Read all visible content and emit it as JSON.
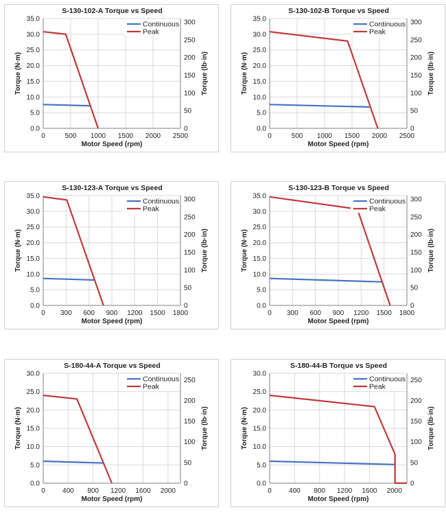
{
  "colors": {
    "continuous": "#4472c4",
    "peak": "#c0393b",
    "grid": "#d9d9d9",
    "axis": "#7f7f7f"
  },
  "chart_data": [
    {
      "type": "line",
      "title": "S-130-102-A Torque vs Speed",
      "xlabel": "Motor Speed (rpm)",
      "ylabel": "Torque (N·m)",
      "y2label": "Torque (lb·in)",
      "xlim": [
        0,
        2500
      ],
      "xticks": [
        "0",
        "500",
        "1000",
        "1500",
        "2000",
        "2500"
      ],
      "ylim": [
        0,
        35
      ],
      "yticks": [
        "0.0",
        "5.0",
        "10.0",
        "15.0",
        "20.0",
        "25.0",
        "30.0",
        "35.0"
      ],
      "y2lim": [
        0,
        309.8
      ],
      "y2ticks": [
        "0",
        "50",
        "100",
        "150",
        "200",
        "250",
        "300"
      ],
      "legend": "top-right",
      "grid": true,
      "series": [
        {
          "name": "Continuous",
          "x": [
            0,
            850
          ],
          "y": [
            7.6,
            7.2
          ]
        },
        {
          "name": "Peak",
          "x": [
            0,
            410,
            1000
          ],
          "y": [
            30.8,
            30.0,
            0.0
          ]
        }
      ]
    },
    {
      "type": "line",
      "title": "S-130-102-B Torque vs Speed",
      "xlabel": "Motor Speed (rpm)",
      "ylabel": "Torque (N·m)",
      "y2label": "Torque (lb·in)",
      "xlim": [
        0,
        2500
      ],
      "xticks": [
        "0",
        "500",
        "1000",
        "1500",
        "2000",
        "2500"
      ],
      "ylim": [
        0,
        35
      ],
      "yticks": [
        "0.0",
        "5.0",
        "10.0",
        "15.0",
        "20.0",
        "25.0",
        "30.0",
        "35.0"
      ],
      "y2lim": [
        0,
        309.8
      ],
      "y2ticks": [
        "0",
        "50",
        "100",
        "150",
        "200",
        "250",
        "300"
      ],
      "legend": "top-right",
      "grid": true,
      "series": [
        {
          "name": "Continuous",
          "x": [
            0,
            1820
          ],
          "y": [
            7.6,
            6.8
          ]
        },
        {
          "name": "Peak",
          "x": [
            0,
            1420,
            1970
          ],
          "y": [
            30.8,
            27.8,
            0.0
          ]
        }
      ]
    },
    {
      "type": "line",
      "title": "S-130-123-A Torque vs Speed",
      "xlabel": "Motor Speed (rpm)",
      "ylabel": "Torque (N·m)",
      "y2label": "Torque (lb·in)",
      "xlim": [
        0,
        1800
      ],
      "xticks": [
        "0",
        "300",
        "600",
        "900",
        "1200",
        "1500",
        "1800"
      ],
      "ylim": [
        0,
        35
      ],
      "yticks": [
        "0.0",
        "5.0",
        "10.0",
        "15.0",
        "20.0",
        "25.0",
        "30.0",
        "35.0"
      ],
      "y2lim": [
        0,
        309.8
      ],
      "y2ticks": [
        "0",
        "50",
        "100",
        "150",
        "200",
        "250",
        "300"
      ],
      "legend": "top-right",
      "grid": true,
      "series": [
        {
          "name": "Continuous",
          "x": [
            0,
            670
          ],
          "y": [
            8.6,
            8.1
          ]
        },
        {
          "name": "Peak",
          "x": [
            0,
            310,
            790
          ],
          "y": [
            34.6,
            33.6,
            0.0
          ]
        }
      ]
    },
    {
      "type": "line",
      "title": "S-130-123-B Torque vs Speed",
      "xlabel": "Motor Speed (rpm)",
      "ylabel": "Torque (N·m)",
      "y2label": "Torque (lb·in)",
      "xlim": [
        0,
        1800
      ],
      "xticks": [
        "0",
        "300",
        "600",
        "900",
        "1200",
        "1500",
        "1800"
      ],
      "ylim": [
        0,
        35
      ],
      "yticks": [
        "0.0",
        "5.0",
        "10.0",
        "15.0",
        "20.0",
        "25.0",
        "30.0",
        "35.0"
      ],
      "y2lim": [
        0,
        309.8
      ],
      "y2ticks": [
        "0",
        "50",
        "100",
        "150",
        "200",
        "250",
        "300"
      ],
      "legend": "top-right",
      "grid": true,
      "series": [
        {
          "name": "Continuous",
          "x": [
            0,
            1470
          ],
          "y": [
            8.6,
            7.5
          ]
        },
        {
          "name": "Peak",
          "x": [
            0,
            1150,
            1580
          ],
          "y": [
            34.6,
            30.7,
            0.0
          ]
        }
      ]
    },
    {
      "type": "line",
      "title": "S-180-44-A Torque vs Speed",
      "xlabel": "Motor Speed (rpm)",
      "ylabel": "Torque (N·m)",
      "y2label": "Torque (lb·in)",
      "xlim": [
        0,
        2200
      ],
      "xticks": [
        "0",
        "400",
        "800",
        "1200",
        "1600",
        "2000"
      ],
      "ylim": [
        0,
        30
      ],
      "yticks": [
        "0.0",
        "5.0",
        "10.0",
        "15.0",
        "20.0",
        "25.0",
        "30.0"
      ],
      "y2lim": [
        0,
        265.5
      ],
      "y2ticks": [
        "0",
        "50",
        "100",
        "150",
        "200",
        "250"
      ],
      "legend": "top-right",
      "grid": true,
      "series": [
        {
          "name": "Continuous",
          "x": [
            0,
            980
          ],
          "y": [
            6.0,
            5.5
          ]
        },
        {
          "name": "Peak",
          "x": [
            0,
            540,
            1100
          ],
          "y": [
            24.0,
            23.0,
            0.0
          ]
        }
      ]
    },
    {
      "type": "line",
      "title": "S-180-44-B Torque vs Speed",
      "xlabel": "Motor Speed (rpm)",
      "ylabel": "Torque (N·m)",
      "y2label": "Torque (lb·in)",
      "xlim": [
        0,
        2200
      ],
      "xticks": [
        "0",
        "400",
        "800",
        "1200",
        "1600",
        "2000"
      ],
      "ylim": [
        0,
        30
      ],
      "yticks": [
        "0.0",
        "5.0",
        "10.0",
        "15.0",
        "20.0",
        "25.0",
        "30.0"
      ],
      "y2lim": [
        0,
        265.5
      ],
      "y2ticks": [
        "0",
        "50",
        "100",
        "150",
        "200",
        "250"
      ],
      "legend": "top-right",
      "grid": true,
      "series": [
        {
          "name": "Continuous",
          "x": [
            0,
            2000
          ],
          "y": [
            6.0,
            5.1
          ]
        },
        {
          "name": "Peak",
          "x": [
            0,
            1680,
            2010,
            2010,
            2200
          ],
          "y": [
            24.0,
            20.9,
            7.9,
            0.0,
            0.0
          ]
        }
      ]
    }
  ]
}
